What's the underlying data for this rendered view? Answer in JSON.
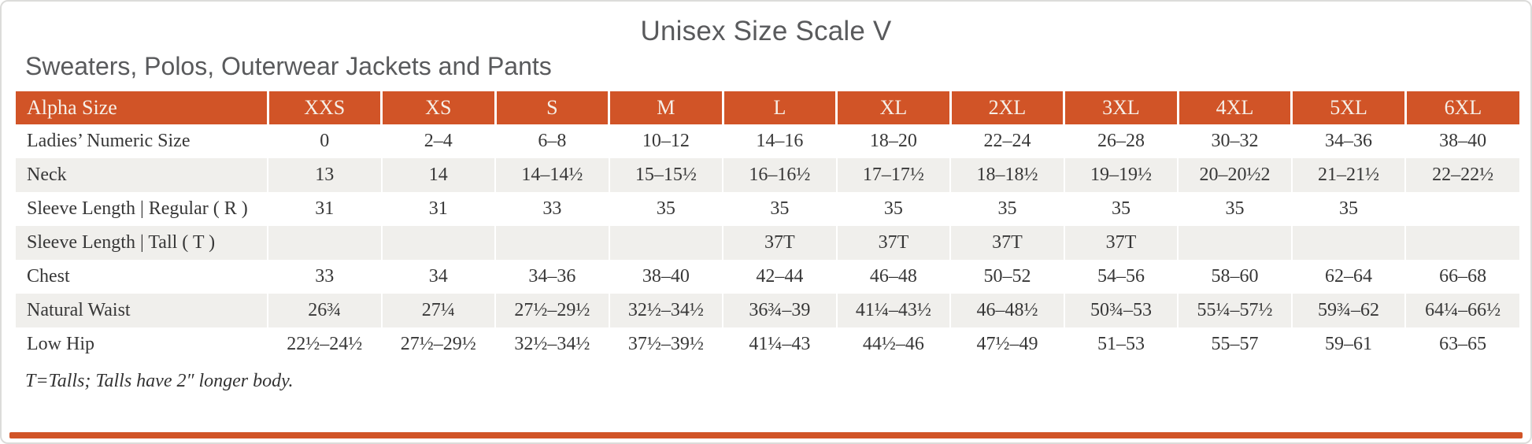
{
  "title": "Unisex Size Scale V",
  "subtitle": "Sweaters, Polos, Outerwear Jackets and Pants",
  "footnote": "T=Talls; Talls have 2″ longer body.",
  "colors": {
    "accent_orange": "#D15427",
    "header_text": "#F6EFE7",
    "alt_row_bg": "#F0EFEC",
    "heading_text": "#595A5C",
    "body_text": "#373737",
    "page_border": "#DCDCDA"
  },
  "chart_data": {
    "type": "table",
    "columns": [
      "Alpha Size",
      "XXS",
      "XS",
      "S",
      "M",
      "L",
      "XL",
      "2XL",
      "3XL",
      "4XL",
      "5XL",
      "6XL"
    ],
    "rows": [
      {
        "label": "Ladies’ Numeric Size",
        "values": [
          "0",
          "2–4",
          "6–8",
          "10–12",
          "14–16",
          "18–20",
          "22–24",
          "26–28",
          "30–32",
          "34–36",
          "38–40"
        ]
      },
      {
        "label": "Neck",
        "values": [
          "13",
          "14",
          "14–14½",
          "15–15½",
          "16–16½",
          "17–17½",
          "18–18½",
          "19–19½",
          "20–20½2",
          "21–21½",
          "22–22½"
        ]
      },
      {
        "label": "Sleeve Length | Regular ( R )",
        "values": [
          "31",
          "31",
          "33",
          "35",
          "35",
          "35",
          "35",
          "35",
          "35",
          "35",
          ""
        ]
      },
      {
        "label": "Sleeve Length | Tall ( T )",
        "values": [
          "",
          "",
          "",
          "",
          "37T",
          "37T",
          "37T",
          "37T",
          "",
          "",
          ""
        ]
      },
      {
        "label": "Chest",
        "values": [
          "33",
          "34",
          "34–36",
          "38–40",
          "42–44",
          "46–48",
          "50–52",
          "54–56",
          "58–60",
          "62–64",
          "66–68"
        ]
      },
      {
        "label": "Natural Waist",
        "values": [
          "26¾",
          "27¼",
          "27½–29½",
          "32½–34½",
          "36¾–39",
          "41¼–43½",
          "46–48½",
          "50¾–53",
          "55¼–57½",
          "59¾–62",
          "64¼–66½"
        ]
      },
      {
        "label": "Low Hip",
        "values": [
          "22½–24½",
          "27½–29½",
          "32½–34½",
          "37½–39½",
          "41¼–43",
          "44½–46",
          "47½–49",
          "51–53",
          "55–57",
          "59–61",
          "63–65"
        ]
      }
    ]
  }
}
